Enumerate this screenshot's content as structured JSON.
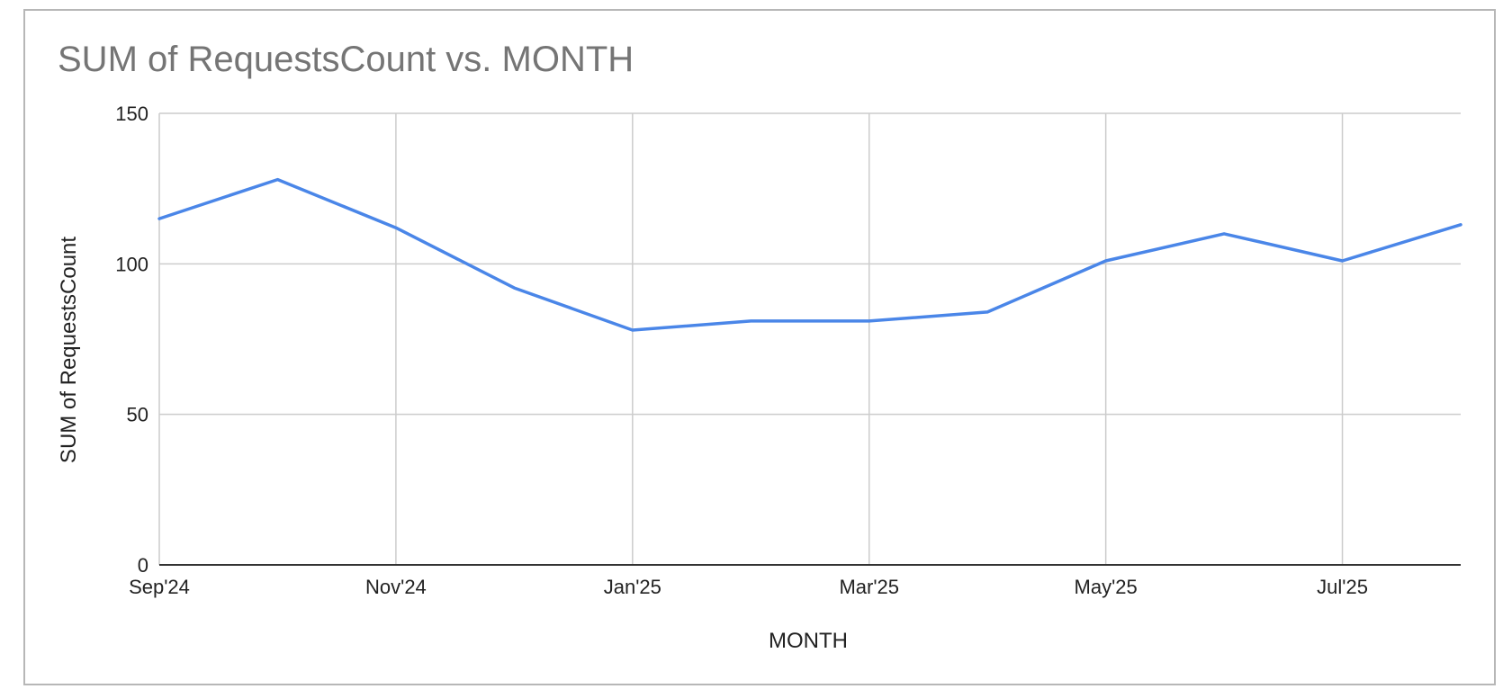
{
  "chart_data": {
    "type": "line",
    "title": "SUM of RequestsCount vs. MONTH",
    "xlabel": "MONTH",
    "ylabel": "SUM of RequestsCount",
    "x": [
      "2024-09",
      "2024-10",
      "2024-11",
      "2024-12",
      "2025-01",
      "2025-02",
      "2025-03",
      "2025-04",
      "2025-05",
      "2025-06",
      "2025-07",
      "2025-08"
    ],
    "x_tick_labels": [
      "Sep'24",
      "Nov'24",
      "Jan'25",
      "Mar'25",
      "May'25",
      "Jul'25"
    ],
    "x_tick_values": [
      "2024-09",
      "2024-11",
      "2025-01",
      "2025-03",
      "2025-05",
      "2025-07"
    ],
    "series": [
      {
        "color": "#4a86e8",
        "values": [
          115,
          128,
          112,
          92,
          78,
          81,
          81,
          84,
          101,
          110,
          101,
          113
        ]
      }
    ],
    "ylim": [
      0,
      150
    ],
    "y_ticks": [
      0,
      50,
      100,
      150
    ],
    "grid": true
  }
}
